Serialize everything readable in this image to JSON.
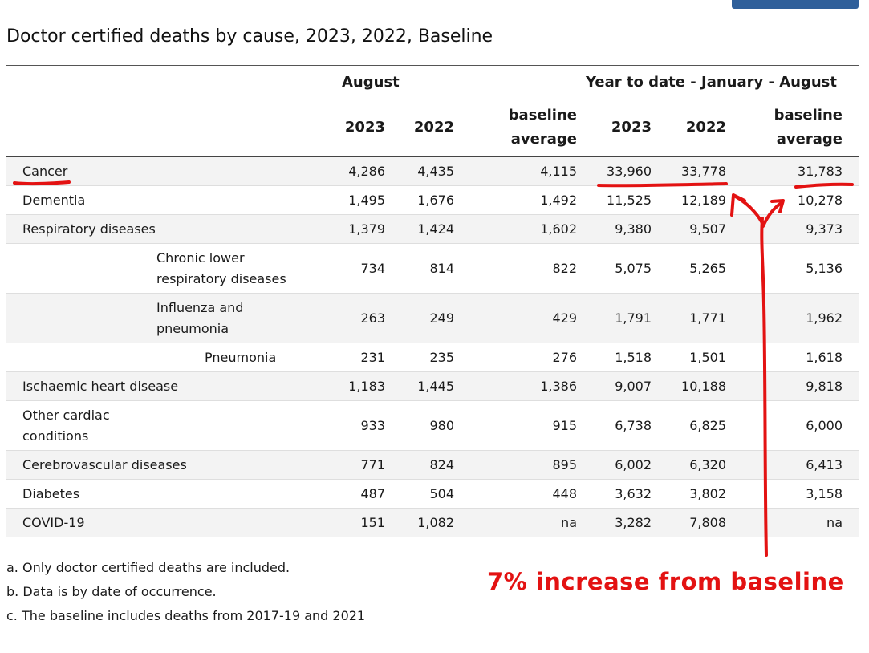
{
  "title": "Doctor certified deaths by cause, 2023, 2022, Baseline",
  "table": {
    "groups": {
      "month": "August",
      "ytd": "Year to date - January - August"
    },
    "columns": [
      "2023",
      "2022",
      "baseline average",
      "2023",
      "2022",
      "baseline average"
    ],
    "rows": [
      {
        "cause": "Cancer",
        "values": [
          "4,286",
          "4,435",
          "4,115",
          "33,960",
          "33,778",
          "31,783"
        ]
      },
      {
        "cause": "Dementia",
        "values": [
          "1,495",
          "1,676",
          "1,492",
          "11,525",
          "12,189",
          "10,278"
        ]
      },
      {
        "cause": "Respiratory diseases",
        "values": [
          "1,379",
          "1,424",
          "1,602",
          "9,380",
          "9,507",
          "9,373"
        ]
      },
      {
        "cause": "Chronic lower respiratory diseases",
        "values": [
          "734",
          "814",
          "822",
          "5,075",
          "5,265",
          "5,136"
        ]
      },
      {
        "cause": "Influenza and pneumonia",
        "values": [
          "263",
          "249",
          "429",
          "1,791",
          "1,771",
          "1,962"
        ]
      },
      {
        "cause": "Pneumonia",
        "values": [
          "231",
          "235",
          "276",
          "1,518",
          "1,501",
          "1,618"
        ]
      },
      {
        "cause": "Ischaemic heart disease",
        "values": [
          "1,183",
          "1,445",
          "1,386",
          "9,007",
          "10,188",
          "9,818"
        ]
      },
      {
        "cause": "Other cardiac conditions",
        "values": [
          "933",
          "980",
          "915",
          "6,738",
          "6,825",
          "6,000"
        ]
      },
      {
        "cause": "Cerebrovascular diseases",
        "values": [
          "771",
          "824",
          "895",
          "6,002",
          "6,320",
          "6,413"
        ]
      },
      {
        "cause": "Diabetes",
        "values": [
          "487",
          "504",
          "448",
          "3,632",
          "3,802",
          "3,158"
        ]
      },
      {
        "cause": "COVID-19",
        "values": [
          "151",
          "1,082",
          "na",
          "3,282",
          "7,808",
          "na"
        ]
      }
    ]
  },
  "notes": [
    "a. Only doctor certified deaths are included.",
    "b. Data is by date of occurrence.",
    "c. The baseline includes deaths from 2017-19 and 2021"
  ],
  "annotation": {
    "text": "7% increase from baseline",
    "color": "#e31212"
  }
}
